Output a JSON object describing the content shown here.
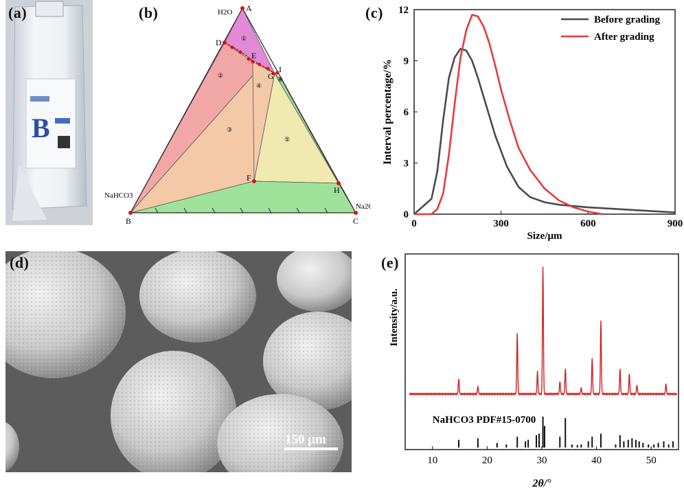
{
  "panels": {
    "a": {
      "label": "(a)",
      "bag_letter": "B"
    },
    "b": {
      "label": "(b)",
      "vertices": {
        "A": "A",
        "B": "B",
        "C": "C",
        "D": "D",
        "E": "E",
        "F": "F",
        "G": "G",
        "H": "H",
        "I": "I"
      },
      "component_labels": {
        "top": "H2O",
        "left": "NaHCO3",
        "right": "Na2CO3"
      },
      "region_labels": [
        "①",
        "②",
        "③",
        "④",
        "⑤",
        "⑥"
      ]
    },
    "c": {
      "label": "(c)"
    },
    "d": {
      "label": "(d)",
      "scalebar": "150 μm"
    },
    "e": {
      "label": "(e)",
      "reference": "NaHCO3 PDF#15-0700"
    }
  },
  "colors": {
    "before": "#4a4a4a",
    "after": "#e63a3a",
    "xrd": "#d42020",
    "region_pink": "#f2a7a7",
    "region_peach": "#f4c9a8",
    "region_yellow": "#f0eab0",
    "region_green": "#9fe39b",
    "region_magenta": "#e28ad6"
  },
  "chart_data": [
    {
      "id": "c",
      "type": "line",
      "xlabel": "Size/μm",
      "ylabel": "Interval percentage/%",
      "xlim": [
        0,
        900
      ],
      "ylim": [
        0,
        12
      ],
      "xticks": [
        0,
        300,
        600,
        900
      ],
      "yticks": [
        0,
        3,
        6,
        9,
        12
      ],
      "legend": "top-right",
      "series": [
        {
          "name": "Before grading",
          "x": [
            0,
            20,
            40,
            60,
            80,
            100,
            120,
            140,
            160,
            180,
            200,
            220,
            250,
            280,
            320,
            360,
            400,
            450,
            500,
            600,
            700,
            800,
            900
          ],
          "y": [
            0,
            0.3,
            0.6,
            0.9,
            2.5,
            5.5,
            8.0,
            9.2,
            9.7,
            9.6,
            9.0,
            8.0,
            6.3,
            4.6,
            2.8,
            1.6,
            1.0,
            0.7,
            0.55,
            0.4,
            0.3,
            0.2,
            0.1
          ]
        },
        {
          "name": "After grading",
          "x": [
            0,
            60,
            80,
            100,
            120,
            140,
            160,
            180,
            200,
            220,
            240,
            260,
            280,
            300,
            330,
            360,
            400,
            450,
            500,
            550,
            600,
            650
          ],
          "y": [
            0,
            0,
            0.3,
            1.2,
            3.5,
            6.5,
            9.2,
            10.8,
            11.7,
            11.6,
            11.0,
            10.0,
            8.7,
            7.3,
            5.5,
            3.9,
            2.6,
            1.5,
            0.8,
            0.4,
            0.15,
            0
          ]
        }
      ]
    },
    {
      "id": "e",
      "type": "line",
      "xlabel": "2θ/°",
      "ylabel": "Intensity/a.u.",
      "xlim": [
        5,
        55
      ],
      "xticks": [
        10,
        20,
        30,
        40,
        50
      ],
      "series": [
        {
          "name": "",
          "x": [
            14.8,
            18.3,
            25.5,
            29.2,
            30.2,
            33.3,
            34.3,
            37.2,
            39.2,
            40.8,
            44.3,
            46.0,
            47.4,
            52.7
          ],
          "y": [
            12,
            6,
            48,
            18,
            100,
            10,
            20,
            5,
            28,
            58,
            20,
            16,
            7,
            8
          ]
        }
      ],
      "reference_sticks": {
        "x": [
          14.8,
          18.3,
          21.8,
          23.5,
          25.5,
          27.0,
          27.5,
          29.0,
          29.5,
          30.2,
          30.5,
          33.3,
          34.3,
          35.5,
          36.5,
          37.2,
          38.5,
          39.2,
          40.8,
          43.5,
          44.3,
          45.0,
          45.8,
          46.5,
          47.2,
          47.8,
          48.5,
          49.5,
          50.5,
          51.3,
          52.3,
          53.2,
          54.0
        ],
        "y": [
          25,
          30,
          15,
          10,
          35,
          20,
          25,
          40,
          45,
          100,
          70,
          35,
          95,
          10,
          8,
          10,
          20,
          35,
          45,
          10,
          40,
          20,
          25,
          30,
          25,
          20,
          15,
          10,
          10,
          15,
          20,
          10,
          20
        ]
      }
    }
  ]
}
